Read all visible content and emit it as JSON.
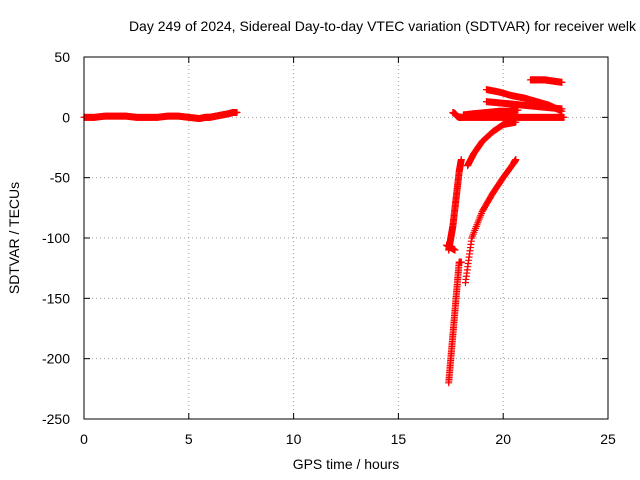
{
  "chart_data": {
    "type": "scatter",
    "title": "Day 249 of 2024, Sidereal Day-to-day VTEC variation (SDTVAR) for receiver welk",
    "xlabel": "GPS time / hours",
    "ylabel": "SDTVAR / TECUs",
    "xlim": [
      0,
      25
    ],
    "ylim": [
      -250,
      50
    ],
    "xticks": [
      0,
      5,
      10,
      15,
      20,
      25
    ],
    "yticks": [
      -250,
      -200,
      -150,
      -100,
      -50,
      0,
      50
    ],
    "grid": true,
    "marker": "+",
    "color": "#ff0000",
    "series": [
      {
        "x": [
          0.0,
          0.5,
          1.0,
          1.5,
          2.0,
          2.5,
          3.0,
          3.5,
          4.0,
          4.5,
          5.0,
          5.5,
          5.8,
          6.0,
          6.3,
          6.6,
          6.9,
          7.1,
          7.3
        ],
        "y": [
          0,
          0,
          1,
          1,
          1,
          0,
          0,
          0,
          1,
          1,
          0,
          -1,
          0,
          0,
          1,
          2,
          3,
          4,
          4
        ]
      },
      {
        "x": [
          17.6,
          17.7,
          17.8,
          17.9,
          18.0
        ],
        "y": [
          4,
          3,
          1,
          0,
          0
        ]
      },
      {
        "x": [
          18.0,
          18.5,
          19.0,
          19.5,
          20.0,
          20.5,
          21.0,
          21.5,
          22.0,
          22.5,
          22.9
        ],
        "y": [
          0,
          0,
          0,
          0,
          0,
          0,
          0,
          0,
          0,
          0,
          0
        ]
      },
      {
        "x": [
          19.2,
          19.8,
          20.4,
          21.0,
          21.6,
          22.2,
          22.8
        ],
        "y": [
          23,
          21,
          18,
          16,
          13,
          10,
          5
        ]
      },
      {
        "x": [
          19.2,
          19.8,
          20.4,
          21.0,
          21.6,
          22.2,
          22.8
        ],
        "y": [
          13,
          12,
          11,
          10,
          9,
          8,
          7
        ]
      },
      {
        "x": [
          21.3,
          21.6,
          22.0,
          22.4,
          22.8
        ],
        "y": [
          31,
          31,
          31,
          30,
          29
        ]
      },
      {
        "x": [
          18.1,
          18.6,
          19.2,
          19.8,
          20.3,
          20.7
        ],
        "y": [
          2,
          3,
          4,
          5,
          5,
          6
        ]
      },
      {
        "x": [
          18.3,
          18.6,
          19.0,
          19.5,
          20.0,
          20.6
        ],
        "y": [
          -40,
          -30,
          -20,
          -12,
          -6,
          -4
        ]
      },
      {
        "x": [
          17.4,
          17.5,
          17.6,
          17.7,
          17.8,
          17.9,
          18.0
        ],
        "y": [
          -110,
          -100,
          -90,
          -75,
          -60,
          -45,
          -35
        ]
      },
      {
        "x": [
          17.3,
          17.5,
          17.7
        ],
        "y": [
          -106,
          -108,
          -110
        ]
      },
      {
        "x": [
          17.4,
          17.5,
          17.6,
          17.7,
          17.8,
          17.9,
          18.0
        ],
        "y": [
          -220,
          -200,
          -180,
          -160,
          -140,
          -120,
          -120
        ]
      },
      {
        "x": [
          18.2,
          18.5,
          19.0,
          19.5,
          20.0,
          20.5,
          20.6
        ],
        "y": [
          -137,
          -100,
          -78,
          -63,
          -50,
          -38,
          -35
        ]
      }
    ]
  }
}
